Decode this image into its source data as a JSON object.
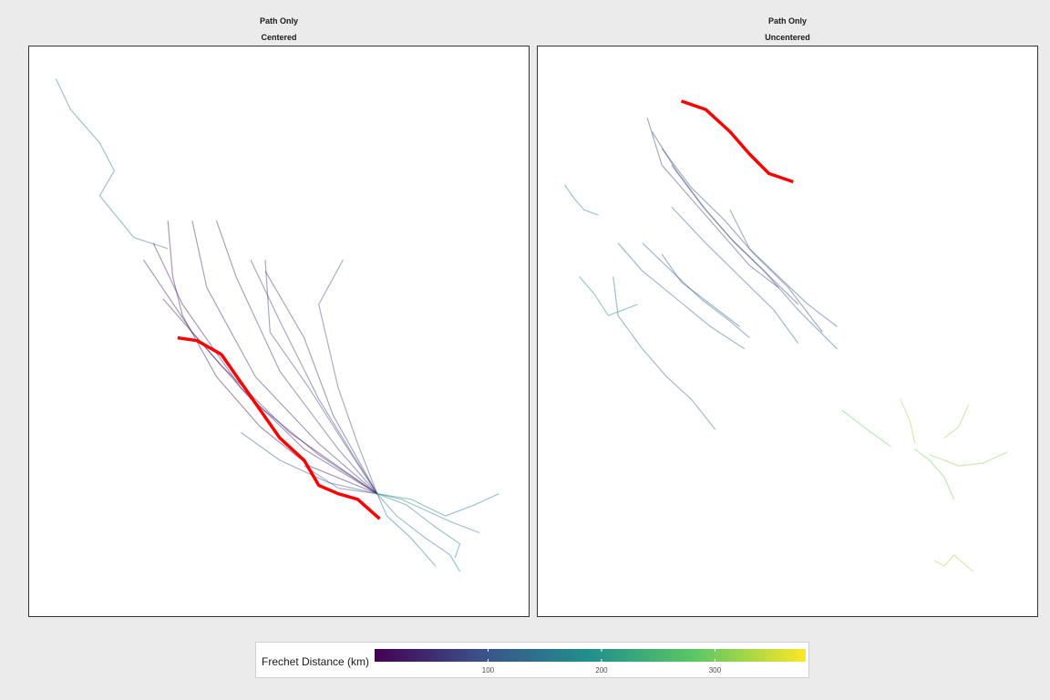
{
  "panels": [
    {
      "title": "Path Only",
      "subtitle": "Centered"
    },
    {
      "title": "Path Only",
      "subtitle": "Uncentered"
    }
  ],
  "legend": {
    "title": "Frechet Distance (km)",
    "ticks": [
      "100",
      "200",
      "300"
    ]
  },
  "colors": {
    "highlight": "#ff0000",
    "viridis": [
      "#440154",
      "#3b528b",
      "#21908c",
      "#5dc863",
      "#fde725"
    ]
  },
  "chart_data": {
    "type": "line",
    "color_scale": {
      "name": "viridis",
      "min": 0,
      "max": 380,
      "ticks": [
        100,
        200,
        300
      ]
    },
    "panels": [
      {
        "name": "Centered",
        "xlim": [
          0,
          100
        ],
        "ylim": [
          0,
          100
        ],
        "highlight": [
          [
            29,
            49
          ],
          [
            33,
            48.5
          ],
          [
            38,
            46
          ],
          [
            42,
            41
          ],
          [
            46,
            36
          ],
          [
            50,
            31
          ],
          [
            55,
            27
          ],
          [
            58,
            22.5
          ],
          [
            62,
            21
          ],
          [
            66,
            20
          ],
          [
            70.5,
            16.5
          ]
        ],
        "paths": [
          {
            "distance": 150,
            "points": [
              [
                4,
                95.5
              ],
              [
                7,
                90
              ],
              [
                13,
                84
              ],
              [
                16,
                79
              ],
              [
                13,
                74.5
              ],
              [
                20,
                67
              ],
              [
                27,
                65
              ]
            ]
          },
          {
            "distance": 30,
            "points": [
              [
                27,
                70
              ],
              [
                28,
                60
              ],
              [
                30,
                53
              ],
              [
                37,
                42
              ],
              [
                46,
                33
              ],
              [
                56,
                26
              ],
              [
                70,
                21
              ]
            ]
          },
          {
            "distance": 50,
            "points": [
              [
                32,
                70
              ],
              [
                35,
                58
              ],
              [
                45,
                42
              ],
              [
                58,
                30
              ],
              [
                70,
                21
              ]
            ]
          },
          {
            "distance": 60,
            "points": [
              [
                37,
                70
              ],
              [
                41,
                60
              ],
              [
                50,
                43
              ],
              [
                62,
                29
              ],
              [
                70,
                21
              ]
            ]
          },
          {
            "distance": 40,
            "points": [
              [
                24,
                66
              ],
              [
                30,
                55
              ],
              [
                42,
                40
              ],
              [
                55,
                29
              ],
              [
                70,
                21
              ]
            ]
          },
          {
            "distance": 70,
            "points": [
              [
                44,
                63
              ],
              [
                50,
                52
              ],
              [
                58,
                38
              ],
              [
                65,
                28
              ],
              [
                70,
                21
              ]
            ]
          },
          {
            "distance": 80,
            "points": [
              [
                47,
                63
              ],
              [
                48,
                50
              ],
              [
                56,
                40
              ],
              [
                64,
                29
              ],
              [
                70,
                21
              ]
            ]
          },
          {
            "distance": 90,
            "points": [
              [
                63,
                63
              ],
              [
                58,
                55
              ],
              [
                62,
                40
              ],
              [
                66,
                30
              ],
              [
                70,
                21
              ]
            ]
          },
          {
            "distance": 60,
            "points": [
              [
                47,
                61
              ],
              [
                55,
                49
              ],
              [
                61,
                35
              ],
              [
                70,
                21
              ]
            ]
          },
          {
            "distance": 35,
            "points": [
              [
                22,
                63
              ],
              [
                32,
                50
              ],
              [
                44,
                38
              ],
              [
                58,
                28
              ],
              [
                70,
                21
              ]
            ]
          },
          {
            "distance": 45,
            "points": [
              [
                26,
                56
              ],
              [
                38,
                44
              ],
              [
                52,
                32
              ],
              [
                70,
                21
              ]
            ]
          },
          {
            "distance": 100,
            "points": [
              [
                42,
                32
              ],
              [
                50,
                27
              ],
              [
                60,
                23
              ],
              [
                70,
                21
              ]
            ]
          },
          {
            "distance": 110,
            "points": [
              [
                55,
                26
              ],
              [
                62,
                22
              ],
              [
                70,
                21
              ]
            ]
          },
          {
            "distance": 160,
            "points": [
              [
                70,
                21
              ],
              [
                75,
                20
              ],
              [
                80,
                18
              ],
              [
                85,
                16
              ],
              [
                91,
                14
              ]
            ]
          },
          {
            "distance": 170,
            "points": [
              [
                70,
                21
              ],
              [
                76,
                19
              ],
              [
                82,
                15
              ],
              [
                87,
                12
              ],
              [
                86,
                9.5
              ]
            ]
          },
          {
            "distance": 165,
            "points": [
              [
                70,
                21
              ],
              [
                77,
                20
              ],
              [
                84,
                17
              ],
              [
                90,
                19
              ],
              [
                95,
                21
              ]
            ]
          },
          {
            "distance": 155,
            "points": [
              [
                70,
                21
              ],
              [
                74,
                17
              ],
              [
                80,
                13
              ],
              [
                85,
                10
              ],
              [
                87,
                7
              ]
            ]
          },
          {
            "distance": 140,
            "points": [
              [
                70,
                21
              ],
              [
                72,
                17
              ],
              [
                77,
                13
              ],
              [
                82,
                8
              ]
            ]
          }
        ]
      },
      {
        "name": "Uncentered",
        "xlim": [
          0,
          100
        ],
        "ylim": [
          0,
          100
        ],
        "highlight": [
          [
            28,
            91.5
          ],
          [
            33,
            90
          ],
          [
            38,
            86
          ],
          [
            42,
            82
          ],
          [
            46,
            78.5
          ],
          [
            51,
            77
          ]
        ],
        "paths": [
          {
            "distance": 75,
            "points": [
              [
                21,
                88.5
              ],
              [
                24,
                80
              ],
              [
                30,
                74
              ],
              [
                36,
                68
              ],
              [
                42,
                62
              ],
              [
                48,
                58
              ]
            ]
          },
          {
            "distance": 80,
            "points": [
              [
                22,
                86
              ],
              [
                27,
                79
              ],
              [
                33,
                72
              ],
              [
                39,
                66
              ],
              [
                45,
                61
              ],
              [
                52,
                55
              ]
            ]
          },
          {
            "distance": 85,
            "points": [
              [
                24,
                83
              ],
              [
                30,
                76
              ],
              [
                37,
                70
              ],
              [
                43,
                64
              ],
              [
                50,
                58
              ],
              [
                57,
                50
              ]
            ]
          },
          {
            "distance": 95,
            "points": [
              [
                26,
                80
              ],
              [
                32,
                73
              ],
              [
                38,
                67
              ],
              [
                45,
                61
              ],
              [
                52,
                54
              ],
              [
                60,
                47
              ]
            ]
          },
          {
            "distance": 105,
            "points": [
              [
                38,
                72
              ],
              [
                42,
                65
              ],
              [
                48,
                60
              ],
              [
                54,
                55
              ],
              [
                60,
                51
              ]
            ]
          },
          {
            "distance": 110,
            "points": [
              [
                26,
                72.5
              ],
              [
                33,
                66
              ],
              [
                40,
                60
              ],
              [
                47,
                54
              ],
              [
                52,
                48
              ]
            ]
          },
          {
            "distance": 120,
            "points": [
              [
                20,
                66
              ],
              [
                26,
                61
              ],
              [
                32,
                56
              ],
              [
                38,
                52
              ],
              [
                42,
                49
              ]
            ]
          },
          {
            "distance": 125,
            "points": [
              [
                15,
                66
              ],
              [
                20,
                61
              ],
              [
                27,
                56
              ],
              [
                34,
                51
              ],
              [
                41,
                47
              ]
            ]
          },
          {
            "distance": 115,
            "points": [
              [
                24,
                64
              ],
              [
                28,
                59
              ],
              [
                34,
                55
              ],
              [
                40,
                51
              ]
            ]
          },
          {
            "distance": 135,
            "points": [
              [
                14,
                60
              ],
              [
                15,
                53
              ],
              [
                20,
                47
              ],
              [
                25,
                42
              ],
              [
                30,
                38
              ],
              [
                35,
                32.5
              ]
            ]
          },
          {
            "distance": 180,
            "points": [
              [
                7,
                60
              ],
              [
                10,
                57
              ],
              [
                13,
                53
              ],
              [
                16,
                54
              ],
              [
                19,
                55
              ]
            ]
          },
          {
            "distance": 170,
            "points": [
              [
                4,
                76.5
              ],
              [
                6,
                74
              ],
              [
                8,
                72
              ],
              [
                11,
                71
              ]
            ]
          },
          {
            "distance": 290,
            "points": [
              [
                61,
                36
              ],
              [
                64,
                34
              ],
              [
                67,
                32
              ],
              [
                71,
                29.5
              ]
            ]
          },
          {
            "distance": 300,
            "points": [
              [
                76,
                29
              ],
              [
                79,
                27
              ],
              [
                82,
                24
              ],
              [
                84,
                20
              ]
            ]
          },
          {
            "distance": 310,
            "points": [
              [
                79,
                28
              ],
              [
                85,
                26
              ],
              [
                90,
                26.5
              ],
              [
                95,
                28.5
              ]
            ]
          },
          {
            "distance": 320,
            "points": [
              [
                87,
                37
              ],
              [
                85,
                33
              ],
              [
                82,
                31
              ]
            ]
          },
          {
            "distance": 330,
            "points": [
              [
                80,
                9
              ],
              [
                82,
                8
              ],
              [
                84,
                10
              ],
              [
                86,
                8.5
              ],
              [
                88,
                7
              ]
            ]
          },
          {
            "distance": 325,
            "points": [
              [
                73,
                38
              ],
              [
                75,
                34
              ],
              [
                76,
                30
              ]
            ]
          }
        ]
      }
    ]
  }
}
